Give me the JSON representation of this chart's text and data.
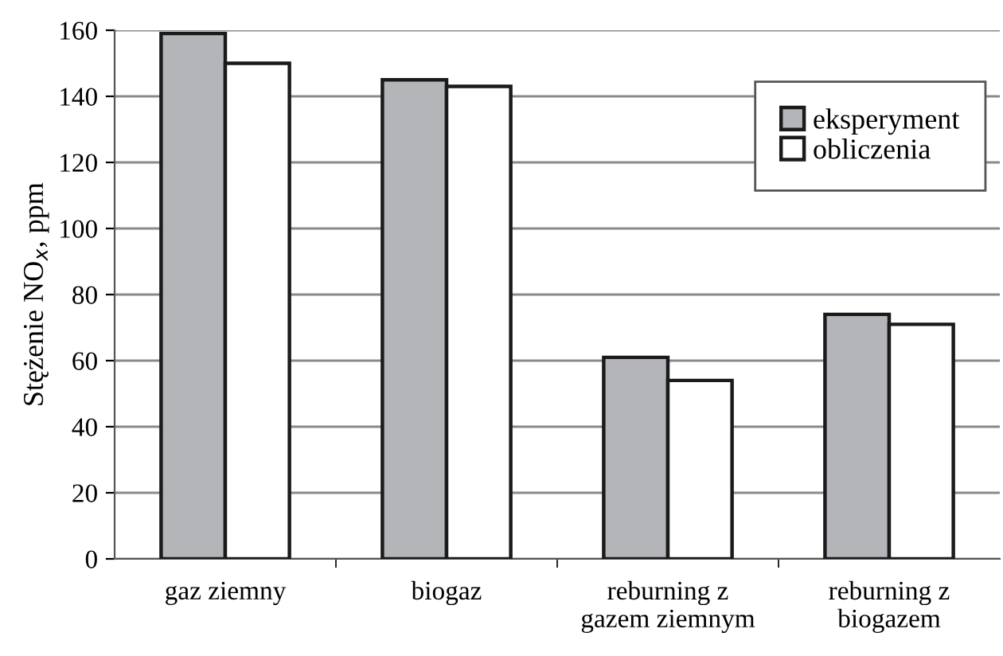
{
  "chart_data": {
    "type": "bar",
    "ylabel": "Stężenie NO$_{x}$, ppm",
    "categories": [
      "gaz ziemny",
      "biogaz",
      "reburning z\ngazem ziemnym",
      "reburning z\nbiogazem"
    ],
    "series": [
      {
        "name": "eksperyment",
        "color": "#b4b5b9",
        "values": [
          159,
          145,
          61,
          74
        ]
      },
      {
        "name": "obliczenia",
        "color": "#ffffff",
        "values": [
          150,
          143,
          54,
          71
        ]
      }
    ],
    "ylim": [
      0,
      160
    ],
    "yticks": [
      0,
      20,
      40,
      60,
      80,
      100,
      120,
      140,
      160
    ],
    "grid": "y",
    "legend": "top right"
  }
}
